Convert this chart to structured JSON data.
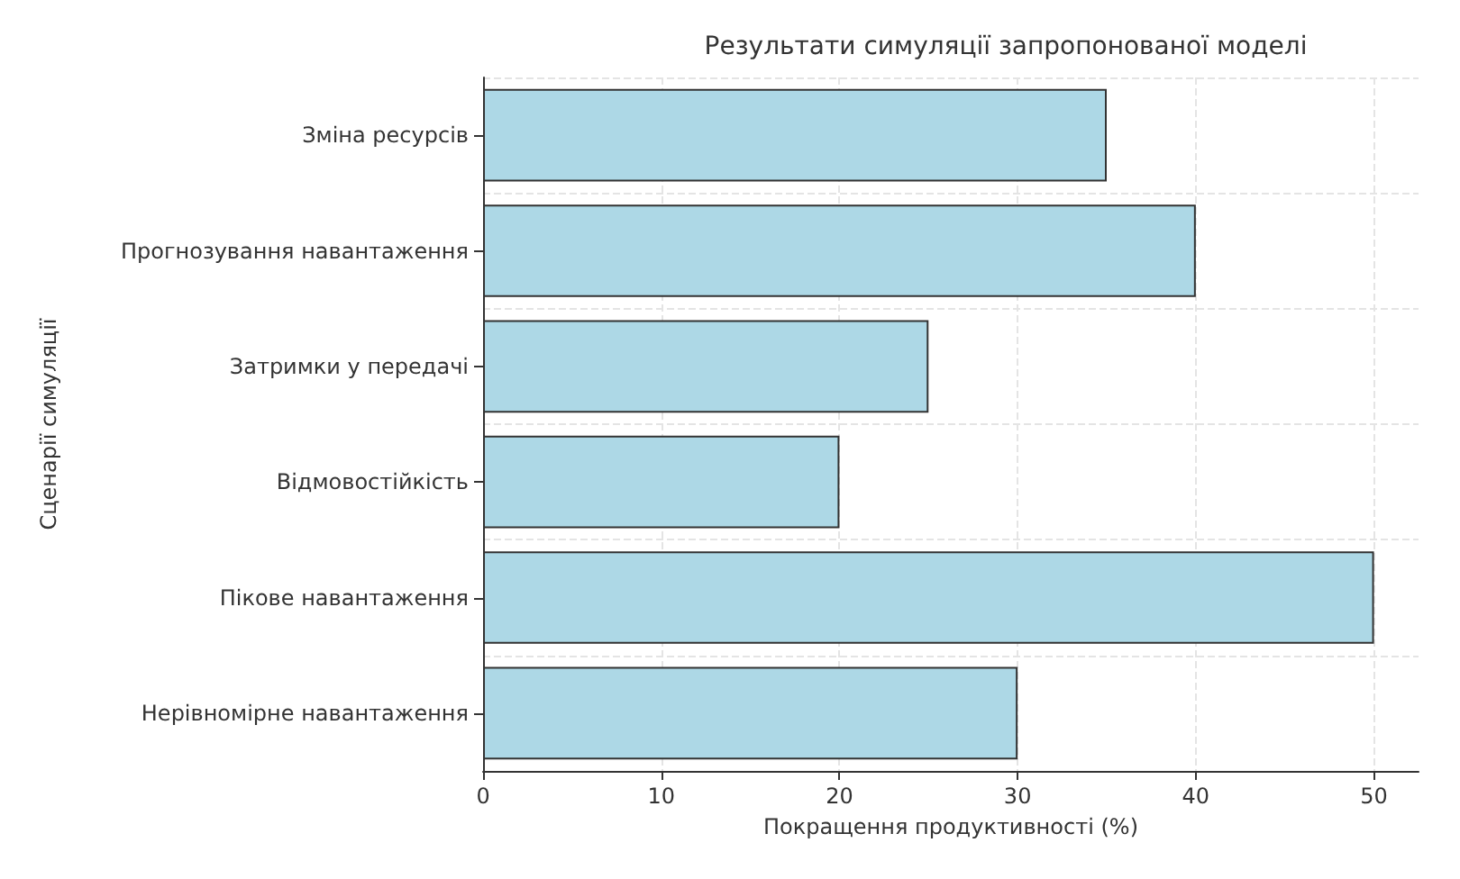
{
  "chart_data": {
    "type": "bar",
    "orientation": "horizontal",
    "title": "Результати симуляції запропонованої моделі",
    "xlabel": "Покращення продуктивності (%)",
    "ylabel": "Сценарії симуляції",
    "categories": [
      "Зміна ресурсів",
      "Прогнозування навантаження",
      "Затримки у передачі",
      "Відмовостійкість",
      "Пікове навантаження",
      "Нерівномірне навантаження"
    ],
    "values": [
      35,
      40,
      25,
      20,
      50,
      30
    ],
    "color": "#add8e6",
    "xlim": [
      0,
      52.5
    ],
    "xticks": [
      0,
      10,
      20,
      30,
      40,
      50
    ],
    "grid": true
  }
}
